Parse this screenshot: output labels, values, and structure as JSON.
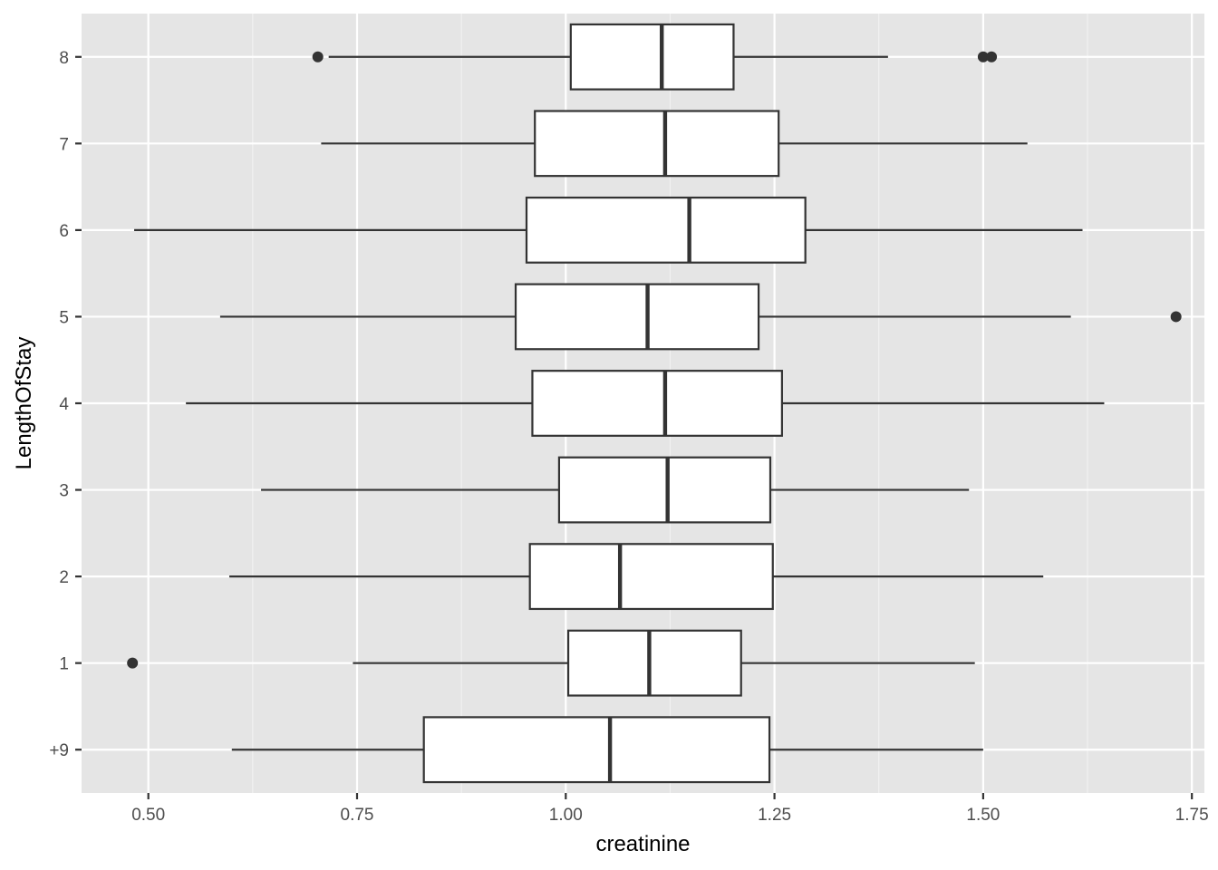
{
  "chart_data": {
    "type": "boxplot",
    "orientation": "horizontal",
    "xlabel": "creatinine",
    "ylabel": "LengthOfStay",
    "xlim": [
      0.42,
      1.765
    ],
    "x_ticks": [
      0.5,
      0.75,
      1.0,
      1.25,
      1.5,
      1.75
    ],
    "x_tick_labels": [
      "0.50",
      "0.75",
      "1.00",
      "1.25",
      "1.50",
      "1.75"
    ],
    "categories": [
      "+9",
      "1",
      "2",
      "3",
      "4",
      "5",
      "6",
      "7",
      "8"
    ],
    "boxes": [
      {
        "category": "+9",
        "whisker_low": 0.6,
        "q1": 0.83,
        "median": 1.053,
        "q3": 1.244,
        "whisker_high": 1.5,
        "outliers": []
      },
      {
        "category": "1",
        "whisker_low": 0.745,
        "q1": 1.003,
        "median": 1.1,
        "q3": 1.21,
        "whisker_high": 1.49,
        "outliers": [
          0.481
        ]
      },
      {
        "category": "2",
        "whisker_low": 0.597,
        "q1": 0.957,
        "median": 1.065,
        "q3": 1.248,
        "whisker_high": 1.572,
        "outliers": []
      },
      {
        "category": "3",
        "whisker_low": 0.635,
        "q1": 0.992,
        "median": 1.122,
        "q3": 1.245,
        "whisker_high": 1.483,
        "outliers": []
      },
      {
        "category": "4",
        "whisker_low": 0.545,
        "q1": 0.96,
        "median": 1.119,
        "q3": 1.259,
        "whisker_high": 1.645,
        "outliers": []
      },
      {
        "category": "5",
        "whisker_low": 0.586,
        "q1": 0.94,
        "median": 1.098,
        "q3": 1.231,
        "whisker_high": 1.605,
        "outliers": [
          1.731
        ]
      },
      {
        "category": "6",
        "whisker_low": 0.483,
        "q1": 0.953,
        "median": 1.148,
        "q3": 1.287,
        "whisker_high": 1.619,
        "outliers": []
      },
      {
        "category": "7",
        "whisker_low": 0.707,
        "q1": 0.963,
        "median": 1.119,
        "q3": 1.255,
        "whisker_high": 1.553,
        "outliers": []
      },
      {
        "category": "8",
        "whisker_low": 0.716,
        "q1": 1.006,
        "median": 1.115,
        "q3": 1.201,
        "whisker_high": 1.386,
        "outliers": [
          0.703,
          1.5,
          1.51
        ]
      }
    ],
    "grid": true,
    "legend": "none",
    "colors": {
      "panel_background": "#e5e5e5",
      "grid_major": "#ffffff",
      "grid_minor": "#f2f2f2",
      "box_fill": "#ffffff",
      "box_stroke": "#333333",
      "point": "#333333",
      "tick_label": "#4d4d4d",
      "axis_title": "#000000"
    }
  }
}
